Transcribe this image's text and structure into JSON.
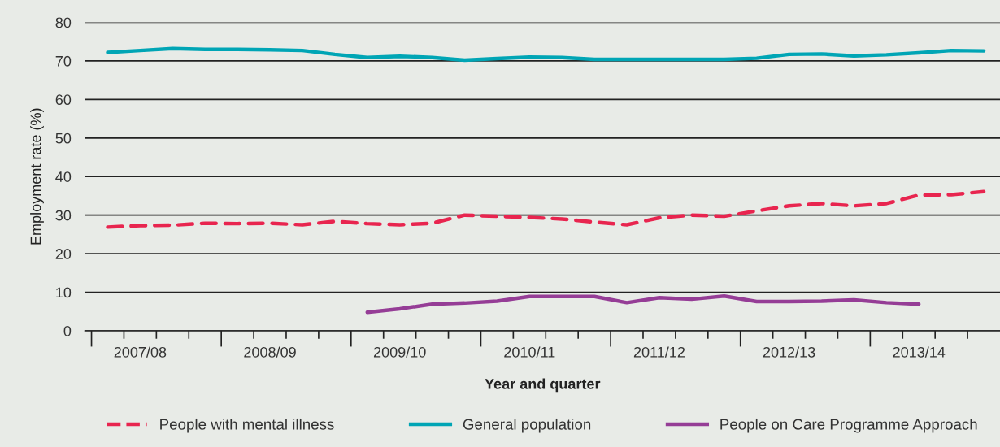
{
  "chart_data": {
    "type": "line",
    "xlabel": "Year and quarter",
    "ylabel": "Employment rate (%)",
    "categories": [
      null,
      "2007/08",
      null,
      null,
      null,
      "2008/09",
      null,
      null,
      null,
      "2009/10",
      null,
      null,
      null,
      "2010/11",
      null,
      null,
      null,
      "2011/12",
      null,
      null,
      null,
      "2012/13",
      null,
      null,
      null,
      "2013/14",
      null,
      null
    ],
    "series": [
      {
        "name": "People with mental illness",
        "color": "#e8254f",
        "line_style": "dashed",
        "values": [
          26.9,
          27.3,
          27.4,
          27.9,
          27.8,
          27.9,
          27.5,
          28.4,
          27.8,
          27.5,
          27.9,
          30.0,
          29.7,
          29.4,
          29.0,
          28.2,
          27.5,
          29.3,
          30.0,
          29.7,
          31.1,
          32.4,
          33.0,
          32.4,
          33.0,
          35.2,
          35.3,
          36.1
        ]
      },
      {
        "name": "General population",
        "color": "#00a5b5",
        "line_style": "solid",
        "values": [
          72.2,
          72.7,
          73.2,
          73.0,
          73.0,
          72.9,
          72.7,
          71.7,
          70.9,
          71.2,
          70.9,
          70.2,
          70.6,
          71.0,
          70.9,
          70.4,
          70.4,
          70.4,
          70.4,
          70.4,
          70.7,
          71.7,
          71.8,
          71.3,
          71.6,
          72.1,
          72.7,
          72.6
        ]
      },
      {
        "name": "People on Care Programme Approach",
        "color": "#953d96",
        "line_style": "solid",
        "values": [
          null,
          null,
          null,
          null,
          null,
          null,
          null,
          null,
          4.8,
          5.7,
          6.9,
          7.2,
          7.7,
          8.9,
          8.9,
          8.9,
          7.3,
          8.6,
          8.2,
          9.0,
          7.6,
          7.6,
          7.7,
          8.0,
          7.3,
          6.9,
          null,
          null
        ]
      }
    ],
    "ylim": [
      0,
      80
    ],
    "yticks": [
      0,
      10,
      20,
      30,
      40,
      50,
      60,
      70,
      80
    ],
    "grid": "y",
    "legend": "bottom",
    "marker": "none"
  }
}
